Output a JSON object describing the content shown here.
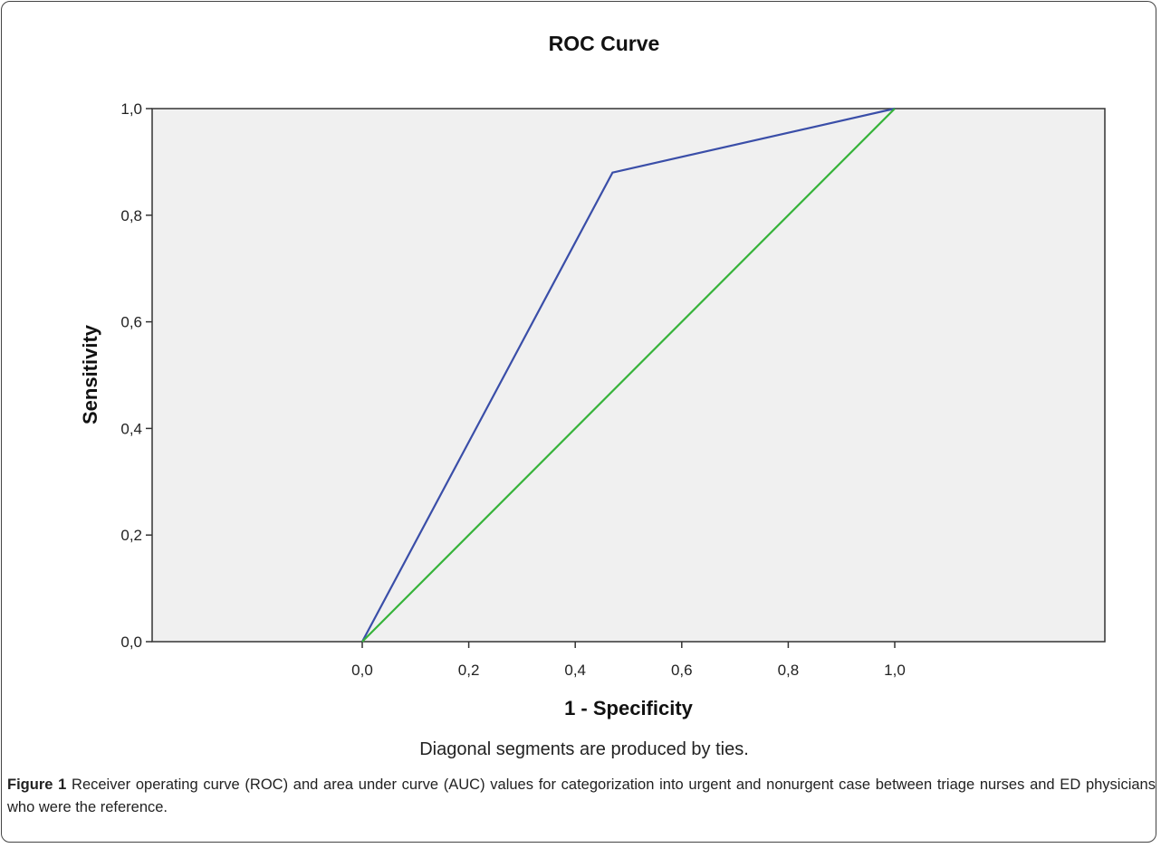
{
  "chart_data": {
    "type": "line",
    "title": "ROC Curve",
    "xlabel": "1 - Specificity",
    "ylabel": "Sensitivity",
    "xlim": [
      0,
      1
    ],
    "ylim": [
      0,
      1
    ],
    "x_ticks": [
      "0,0",
      "0,2",
      "0,4",
      "0,6",
      "0,8",
      "1,0"
    ],
    "y_ticks": [
      "0,0",
      "0,2",
      "0,4",
      "0,6",
      "0,8",
      "1,0"
    ],
    "grid": false,
    "series": [
      {
        "color": "#3a4ea8",
        "points": [
          [
            0,
            0
          ],
          [
            0.47,
            0.88
          ],
          [
            1,
            1
          ]
        ]
      },
      {
        "color": "#36b33a",
        "points": [
          [
            0,
            0
          ],
          [
            1,
            1
          ]
        ]
      }
    ],
    "footnote": "Diagonal segments are produced by ties."
  },
  "caption": {
    "label": "Figure 1",
    "text": "Receiver operating curve (ROC) and area under curve (AUC) values for categorization into urgent and nonurgent case between triage nurses and ED physicians who were the reference."
  }
}
